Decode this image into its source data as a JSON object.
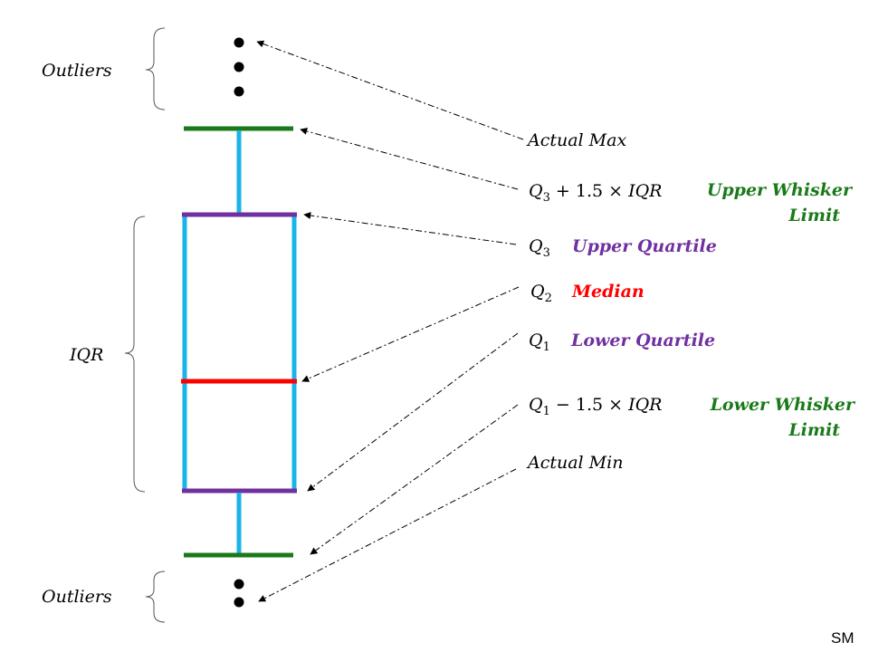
{
  "colors": {
    "whisker_caps": "#1a7a1a",
    "box_sides": "#19b4ea",
    "quartile_lines": "#7030a0",
    "median_line": "#ff0000",
    "upper_label": "#1a7a1a",
    "quartile_label": "#7030a0",
    "median_label": "#ff0000"
  },
  "labels": {
    "outliers_top": "Outliers",
    "outliers_bottom": "Outliers",
    "iqr": "IQR",
    "actual_max": "Actual Max",
    "actual_min": "Actual Min",
    "upper_whisker_formula": {
      "q": "Q",
      "sub": "3",
      "rest": " + 1.5 × ",
      "iqr": "IQR"
    },
    "lower_whisker_formula": {
      "q": "Q",
      "sub": "1",
      "rest": " − 1.5 × ",
      "iqr": "IQR"
    },
    "q3": {
      "q": "Q",
      "sub": "3"
    },
    "q2": {
      "q": "Q",
      "sub": "2"
    },
    "q1": {
      "q": "Q",
      "sub": "1"
    },
    "upper_whisker_limit_line1": "Upper Whisker",
    "upper_whisker_limit_line2": "Limit",
    "upper_quartile": "Upper Quartile",
    "median": "Median",
    "lower_quartile": "Lower Quartile",
    "lower_whisker_limit_line1": "Lower Whisker",
    "lower_whisker_limit_line2": "Limit",
    "signature": "SM"
  }
}
